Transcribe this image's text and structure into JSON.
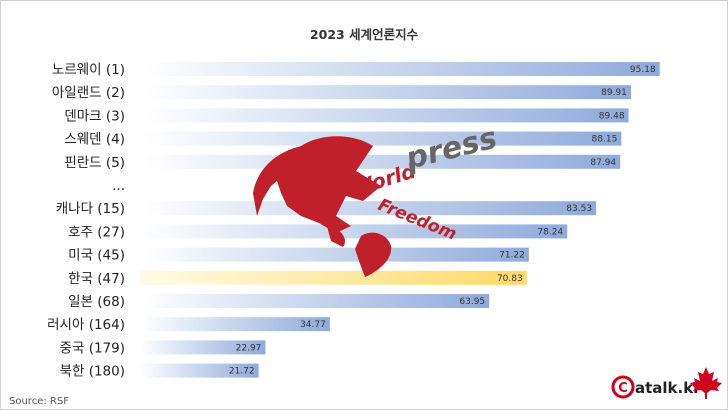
{
  "chart_data": {
    "type": "bar",
    "orientation": "horizontal",
    "title": "2023 세계언론지수",
    "categories": [
      "노르웨이 (1)",
      "아일랜드 (2)",
      "덴마크 (3)",
      "스웨덴 (4)",
      "핀란드 (5)",
      "...",
      "캐나다 (15)",
      "호주 (27)",
      "미국 (45)",
      "한국 (47)",
      "일본 (68)",
      "러시아 (164)",
      "중국 (179)",
      "북한 (180)"
    ],
    "values": [
      95.18,
      89.91,
      89.48,
      88.15,
      87.94,
      null,
      83.53,
      78.24,
      71.22,
      70.83,
      63.95,
      34.77,
      22.97,
      21.72
    ],
    "value_labels": [
      "95.18",
      "89.91",
      "89.48",
      "88.15",
      "87.94",
      "",
      "83.53",
      "78.24",
      "71.22",
      "70.83",
      "63.95",
      "34.77",
      "22.97",
      "21.72"
    ],
    "highlight_category": "한국 (47)",
    "xlim": [
      0,
      100
    ],
    "grid": false,
    "legend": "none",
    "colors": {
      "bar_start": "#ffffff",
      "bar_end": "#8eaadb",
      "highlight_start": "#fffbe6",
      "highlight_end": "#ffd966"
    }
  },
  "source": "Source: RSF",
  "watermark": {
    "word1": "World",
    "word2": "press",
    "word3": "Freedom",
    "icon": "red-globe-icon",
    "color": "#c0202a"
  },
  "brand": {
    "icon": "maple-leaf-icon",
    "text": "atalk.kr",
    "initial": "C",
    "color": "#d1001c"
  }
}
